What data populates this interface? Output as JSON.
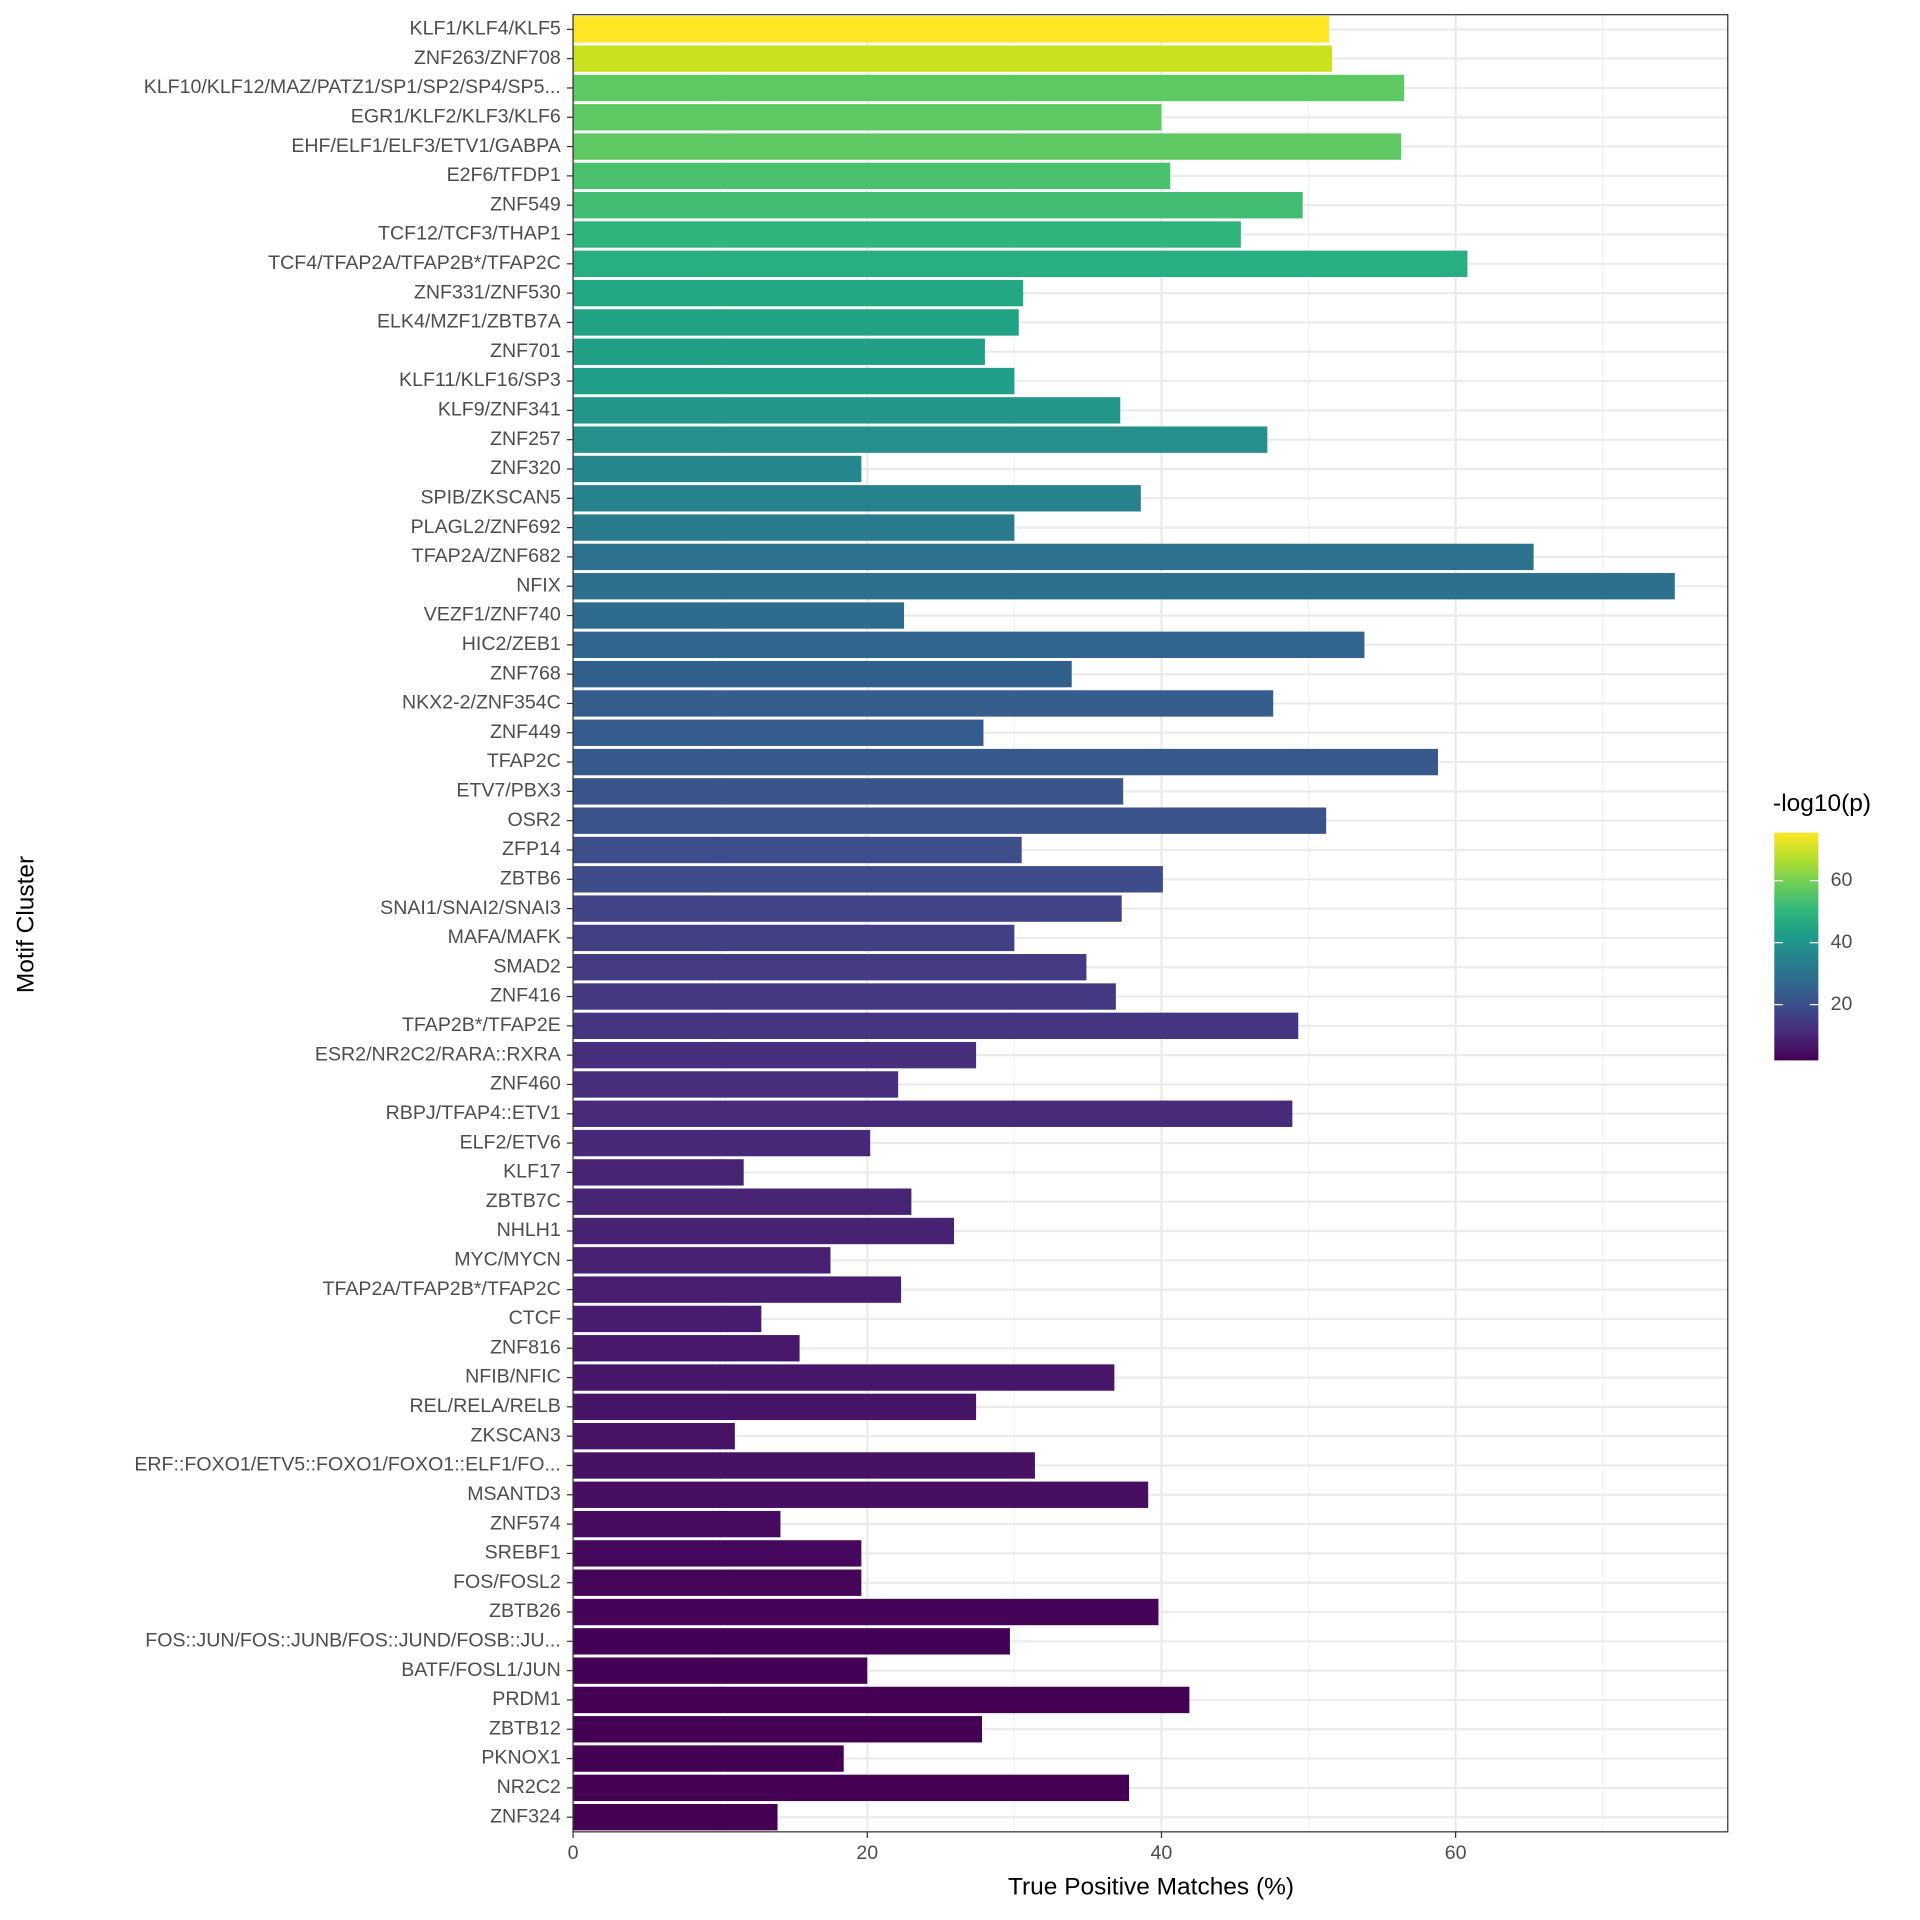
{
  "chart_data": {
    "type": "barh",
    "x_label": "True Positive Matches (%)",
    "y_label": "Motif Cluster",
    "categories": [
      "KLF1/KLF4/KLF5",
      "ZNF263/ZNF708",
      "KLF10/KLF12/MAZ/PATZ1/SP1/SP2/SP4/SP5...",
      "EGR1/KLF2/KLF3/KLF6",
      "EHF/ELF1/ELF3/ETV1/GABPA",
      "E2F6/TFDP1",
      "ZNF549",
      "TCF12/TCF3/THAP1",
      "TCF4/TFAP2A/TFAP2B*/TFAP2C",
      "ZNF331/ZNF530",
      "ELK4/MZF1/ZBTB7A",
      "ZNF701",
      "KLF11/KLF16/SP3",
      "KLF9/ZNF341",
      "ZNF257",
      "ZNF320",
      "SPIB/ZKSCAN5",
      "PLAGL2/ZNF692",
      "TFAP2A/ZNF682",
      "NFIX",
      "VEZF1/ZNF740",
      "HIC2/ZEB1",
      "ZNF768",
      "NKX2-2/ZNF354C",
      "ZNF449",
      "TFAP2C",
      "ETV7/PBX3",
      "OSR2",
      "ZFP14",
      "ZBTB6",
      "SNAI1/SNAI2/SNAI3",
      "MAFA/MAFK",
      "SMAD2",
      "ZNF416",
      "TFAP2B*/TFAP2E",
      "ESR2/NR2C2/RARA::RXRA",
      "ZNF460",
      "RBPJ/TFAP4::ETV1",
      "ELF2/ETV6",
      "KLF17",
      "ZBTB7C",
      "NHLH1",
      "MYC/MYCN",
      "TFAP2A/TFAP2B*/TFAP2C",
      "CTCF",
      "ZNF816",
      "NFIB/NFIC",
      "REL/RELA/RELB",
      "ZKSCAN3",
      "ERF::FOXO1/ETV5::FOXO1/FOXO1::ELF1/FO...",
      "MSANTD3",
      "ZNF574",
      "SREBF1",
      "FOS/FOSL2",
      "ZBTB26",
      "FOS::JUN/FOS::JUNB/FOS::JUND/FOSB::JU...",
      "BATF/FOSL1/JUN",
      "PRDM1",
      "ZBTB12",
      "PKNOX1",
      "NR2C2",
      "ZNF324"
    ],
    "values": [
      51.4,
      51.6,
      56.5,
      40.0,
      56.3,
      40.6,
      49.6,
      45.4,
      60.8,
      30.6,
      30.3,
      28.0,
      30.0,
      37.2,
      47.2,
      19.6,
      38.6,
      30.0,
      65.3,
      74.9,
      22.5,
      53.8,
      33.9,
      47.6,
      27.9,
      58.8,
      37.4,
      51.2,
      30.5,
      40.1,
      37.3,
      30.0,
      34.9,
      36.9,
      49.3,
      27.4,
      22.1,
      48.9,
      20.2,
      11.6,
      23.0,
      25.9,
      17.5,
      22.3,
      12.8,
      15.4,
      36.8,
      27.4,
      11.0,
      31.4,
      39.1,
      14.1,
      19.6,
      19.6,
      39.8,
      29.7,
      20.0,
      41.9,
      27.8,
      18.4,
      37.8,
      13.9
    ],
    "colors": [
      "#fde725",
      "#cae11f",
      "#5ec962",
      "#5ec962",
      "#5ec962",
      "#4ac16d",
      "#40bd72",
      "#2fb47c",
      "#28ae80",
      "#24a884",
      "#23a386",
      "#22a085",
      "#1f9e89",
      "#22978a",
      "#25908c",
      "#26888e",
      "#28828e",
      "#2a7b8e",
      "#2c728e",
      "#2d708e",
      "#2f6b8e",
      "#31648e",
      "#32608d",
      "#355e8d",
      "#365c8d",
      "#38598c",
      "#3a548c",
      "#3b528b",
      "#3d4e8a",
      "#3e4c8a",
      "#414487",
      "#423f85",
      "#443b84",
      "#453882",
      "#463480",
      "#472f7d",
      "#472d7b",
      "#472a7a",
      "#482878",
      "#482475",
      "#482475",
      "#482374",
      "#482173",
      "#481f70",
      "#481c6e",
      "#48186a",
      "#481668",
      "#481467",
      "#471365",
      "#471164",
      "#470e61",
      "#460b5e",
      "#46085c",
      "#450559",
      "#450457",
      "#440256",
      "#440256",
      "#440154",
      "#440154",
      "#440154",
      "#440154",
      "#440154"
    ],
    "xlim": [
      0,
      78.5
    ],
    "xticks": [
      0,
      20,
      40,
      60
    ],
    "xminor": [
      10,
      30,
      50,
      70
    ],
    "grid": true,
    "colorbar": {
      "title": "-log10(p)",
      "lim": [
        2,
        75.5
      ],
      "ticks": [
        20,
        40,
        60
      ],
      "colors": [
        "#440154",
        "#482878",
        "#3e4989",
        "#31688e",
        "#26828e",
        "#1f9e89",
        "#35b779",
        "#6ece58",
        "#b5de2b",
        "#fde725"
      ]
    }
  }
}
